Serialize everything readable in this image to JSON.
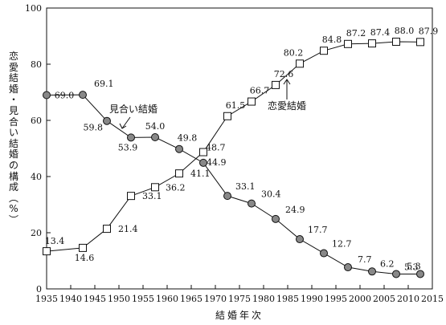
{
  "chart_data": {
    "type": "line",
    "xlabel": "結婚年次",
    "ylabel": "恋愛結婚・見合い結婚の構成（%）",
    "xlim": [
      1935,
      2015
    ],
    "ylim": [
      0,
      100
    ],
    "x_ticks": [
      1935,
      1940,
      1945,
      1950,
      1955,
      1960,
      1965,
      1970,
      1975,
      1980,
      1985,
      1990,
      1995,
      2000,
      2005,
      2010,
      2015
    ],
    "y_ticks": [
      0,
      20,
      40,
      60,
      80,
      100
    ],
    "grid": false,
    "series": [
      {
        "name": "見合い結婚",
        "marker": "circle",
        "color": "#888888",
        "x": [
          1935,
          1942.5,
          1947.5,
          1952.5,
          1957.5,
          1962.5,
          1967.5,
          1972.5,
          1977.5,
          1982.5,
          1987.5,
          1992.5,
          1997.5,
          2002.5,
          2007.5,
          2012.5
        ],
        "values": [
          69.0,
          69.1,
          59.8,
          53.9,
          54.0,
          49.8,
          44.9,
          33.1,
          30.4,
          24.9,
          17.7,
          12.7,
          7.7,
          6.2,
          5.3,
          5.3
        ],
        "labels": [
          "69.0",
          "69.1",
          "59.8",
          "53.9",
          "54.0",
          "49.8",
          "44.9",
          "33.1",
          "30.4",
          "24.9",
          "17.7",
          "12.7",
          "7.7",
          "6.2",
          "5.3",
          "5.3"
        ]
      },
      {
        "name": "恋愛結婚",
        "marker": "square",
        "color": "#ffffff",
        "x": [
          1935,
          1942.5,
          1947.5,
          1952.5,
          1957.5,
          1962.5,
          1967.5,
          1972.5,
          1977.5,
          1982.5,
          1987.5,
          1992.5,
          1997.5,
          2002.5,
          2007.5,
          2012.5
        ],
        "values": [
          13.4,
          14.6,
          21.4,
          33.1,
          36.2,
          41.1,
          48.7,
          61.5,
          66.7,
          72.6,
          80.2,
          84.8,
          87.2,
          87.4,
          88.0,
          87.9
        ],
        "labels": [
          "13.4",
          "14.6",
          "21.4",
          "33.1",
          "36.2",
          "41.1",
          "48.7",
          "61.5",
          "66.7",
          "72.6",
          "80.2",
          "84.8",
          "87.2",
          "87.4",
          "88.0",
          "87.9"
        ]
      }
    ]
  }
}
